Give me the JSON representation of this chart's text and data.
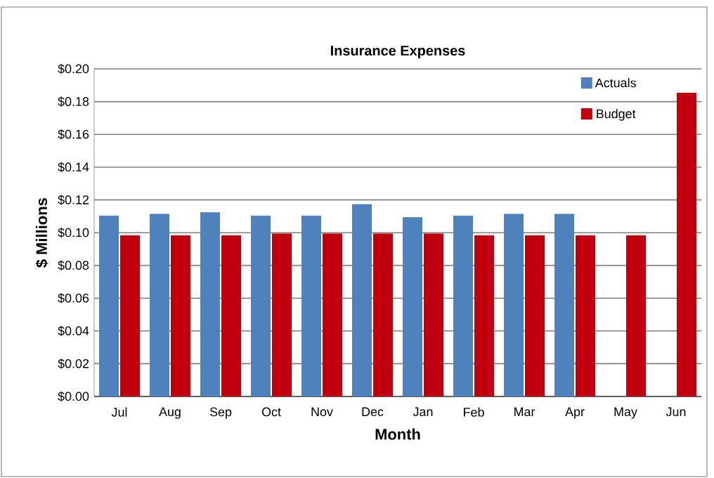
{
  "chart_data": {
    "type": "bar",
    "title": "Insurance Expenses",
    "xlabel": "Month",
    "ylabel": "$ Millions",
    "categories": [
      "Jul",
      "Aug",
      "Sep",
      "Oct",
      "Nov",
      "Dec",
      "Jan",
      "Feb",
      "Mar",
      "Apr",
      "May",
      "Jun"
    ],
    "series": [
      {
        "name": "Actuals",
        "color": "#4f81bd",
        "values": [
          0.11,
          0.111,
          0.112,
          0.11,
          0.11,
          0.117,
          0.109,
          0.11,
          0.111,
          0.111,
          null,
          null
        ]
      },
      {
        "name": "Budget",
        "color": "#c0000f",
        "values": [
          0.098,
          0.098,
          0.098,
          0.099,
          0.099,
          0.099,
          0.099,
          0.098,
          0.098,
          0.098,
          0.098,
          0.185
        ]
      }
    ],
    "ylim": [
      0,
      0.2
    ],
    "yticks": [
      {
        "value": 0,
        "label": "$0.00"
      },
      {
        "value": 0.02,
        "label": "$0.02"
      },
      {
        "value": 0.04,
        "label": "$0.04"
      },
      {
        "value": 0.06,
        "label": "$0.06"
      },
      {
        "value": 0.08,
        "label": "$0.08"
      },
      {
        "value": 0.1,
        "label": "$0.10"
      },
      {
        "value": 0.12,
        "label": "$0.12"
      },
      {
        "value": 0.14,
        "label": "$0.14"
      },
      {
        "value": 0.16,
        "label": "$0.16"
      },
      {
        "value": 0.18,
        "label": "$0.18"
      },
      {
        "value": 0.2,
        "label": "$0.20"
      }
    ],
    "grid": "y",
    "legend": "top right"
  }
}
